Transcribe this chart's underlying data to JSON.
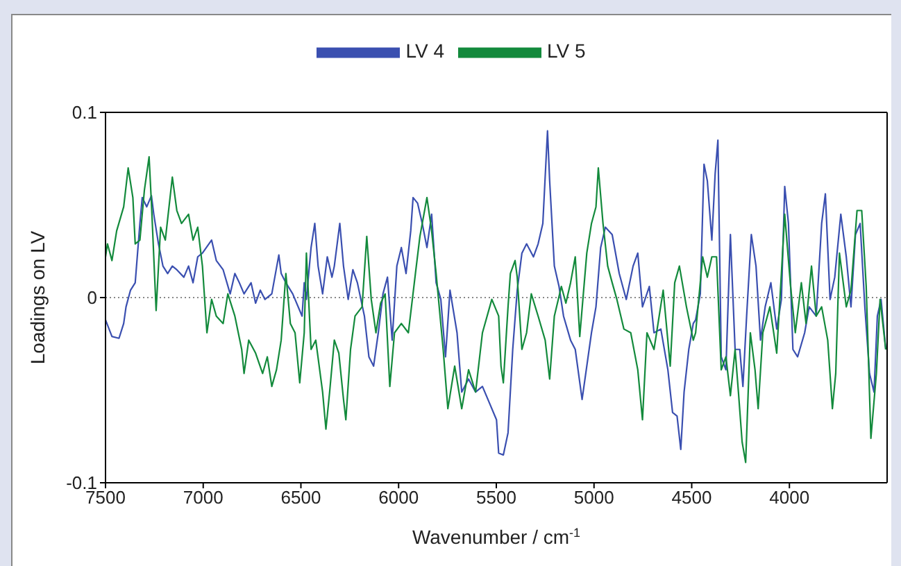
{
  "chart_data": {
    "type": "line",
    "xlabel": "Wavenumber / cm$^{-1}$",
    "ylabel": "Loadings on LV",
    "xlim": [
      7500,
      3500
    ],
    "xticks": [
      7500,
      7000,
      6500,
      6000,
      5500,
      5000,
      4500,
      4000
    ],
    "ylim": [
      -0.1,
      0.1
    ],
    "yticks": [
      -0.1,
      0,
      0.1
    ],
    "grid": false,
    "legend": "top",
    "marker": "none",
    "line_style": "solid",
    "ref_lines": [
      {
        "axis": "y",
        "value": 0,
        "color": "#888888",
        "line_style": "dotted"
      }
    ],
    "series": [
      {
        "name": "LV 4",
        "color": "#3a4fb0",
        "x": [
          7500,
          7467,
          7431,
          7407,
          7395,
          7372,
          7348,
          7324,
          7312,
          7289,
          7265,
          7253,
          7229,
          7206,
          7182,
          7158,
          7135,
          7099,
          7075,
          7052,
          7028,
          7004,
          6957,
          6933,
          6898,
          6862,
          6838,
          6815,
          6791,
          6755,
          6732,
          6708,
          6684,
          6649,
          6613,
          6601,
          6577,
          6542,
          6494,
          6483,
          6472,
          6448,
          6429,
          6412,
          6389,
          6365,
          6341,
          6329,
          6301,
          6282,
          6258,
          6234,
          6211,
          6175,
          6152,
          6128,
          6104,
          6080,
          6057,
          6033,
          6009,
          5986,
          5962,
          5938,
          5926,
          5903,
          5879,
          5855,
          5831,
          5808,
          5784,
          5760,
          5737,
          5701,
          5677,
          5642,
          5606,
          5571,
          5535,
          5499,
          5488,
          5464,
          5440,
          5416,
          5393,
          5369,
          5345,
          5310,
          5286,
          5262,
          5238,
          5227,
          5203,
          5179,
          5156,
          5120,
          5096,
          5061,
          5037,
          5013,
          4990,
          4966,
          4942,
          4907,
          4871,
          4835,
          4800,
          4776,
          4752,
          4717,
          4693,
          4658,
          4622,
          4598,
          4575,
          4556,
          4539,
          4515,
          4492,
          4480,
          4456,
          4437,
          4420,
          4397,
          4380,
          4366,
          4349,
          4325,
          4302,
          4278,
          4254,
          4238,
          4219,
          4195,
          4171,
          4148,
          4124,
          4095,
          4065,
          4041,
          4024,
          4005,
          3982,
          3958,
          3922,
          3899,
          3863,
          3835,
          3816,
          3792,
          3768,
          3737,
          3709,
          3685,
          3662,
          3638,
          3614,
          3590,
          3567,
          3550,
          3531,
          3507
        ],
        "values": [
          -0.012,
          -0.021,
          -0.022,
          -0.014,
          -0.005,
          0.004,
          0.008,
          0.04,
          0.054,
          0.049,
          0.055,
          0.045,
          0.029,
          0.017,
          0.013,
          0.017,
          0.015,
          0.011,
          0.017,
          0.008,
          0.022,
          0.024,
          0.031,
          0.02,
          0.015,
          0.002,
          0.013,
          0.008,
          0.002,
          0.008,
          -0.003,
          0.004,
          -0.001,
          0.002,
          0.023,
          0.013,
          0.008,
          0.002,
          -0.01,
          0.008,
          -0.001,
          0.027,
          0.04,
          0.017,
          0.002,
          0.022,
          0.011,
          0.017,
          0.04,
          0.017,
          -0.001,
          0.015,
          0.008,
          -0.01,
          -0.032,
          -0.037,
          -0.019,
          0.002,
          0.011,
          -0.023,
          0.017,
          0.027,
          0.013,
          0.036,
          0.054,
          0.051,
          0.04,
          0.027,
          0.045,
          0.008,
          -0.001,
          -0.032,
          0.004,
          -0.019,
          -0.051,
          -0.044,
          -0.051,
          -0.048,
          -0.057,
          -0.066,
          -0.084,
          -0.085,
          -0.073,
          -0.028,
          0.004,
          0.024,
          0.029,
          0.022,
          0.029,
          0.04,
          0.09,
          0.063,
          0.017,
          0.006,
          -0.01,
          -0.023,
          -0.028,
          -0.055,
          -0.037,
          -0.019,
          -0.005,
          0.027,
          0.038,
          0.034,
          0.013,
          -0.001,
          0.017,
          0.024,
          -0.005,
          0.006,
          -0.019,
          -0.017,
          -0.039,
          -0.062,
          -0.064,
          -0.082,
          -0.051,
          -0.028,
          -0.014,
          -0.012,
          0.002,
          0.072,
          0.063,
          0.031,
          0.067,
          0.085,
          -0.032,
          -0.039,
          0.034,
          -0.028,
          -0.028,
          -0.048,
          -0.01,
          0.034,
          0.017,
          -0.023,
          -0.005,
          0.008,
          -0.017,
          -0.001,
          0.06,
          0.04,
          -0.028,
          -0.032,
          -0.019,
          -0.005,
          -0.01,
          0.04,
          0.056,
          -0.001,
          0.011,
          0.045,
          0.022,
          -0.005,
          0.034,
          0.04,
          -0.005,
          -0.041,
          -0.051,
          -0.01,
          -0.001,
          -0.028
        ]
      },
      {
        "name": "LV 5",
        "color": "#138a3c",
        "x": [
          7500,
          7490,
          7467,
          7443,
          7407,
          7384,
          7360,
          7348,
          7324,
          7301,
          7277,
          7265,
          7241,
          7218,
          7194,
          7158,
          7135,
          7111,
          7075,
          7052,
          7028,
          7004,
          6981,
          6957,
          6933,
          6898,
          6874,
          6838,
          6803,
          6791,
          6767,
          6732,
          6696,
          6672,
          6649,
          6625,
          6601,
          6577,
          6554,
          6530,
          6506,
          6483,
          6472,
          6448,
          6424,
          6389,
          6372,
          6353,
          6329,
          6306,
          6282,
          6270,
          6246,
          6223,
          6187,
          6163,
          6140,
          6116,
          6092,
          6069,
          6045,
          6021,
          5986,
          5950,
          5914,
          5891,
          5855,
          5831,
          5808,
          5772,
          5748,
          5713,
          5677,
          5642,
          5606,
          5571,
          5523,
          5488,
          5476,
          5464,
          5440,
          5428,
          5404,
          5393,
          5369,
          5345,
          5321,
          5286,
          5250,
          5227,
          5203,
          5167,
          5144,
          5120,
          5096,
          5073,
          5037,
          5013,
          4990,
          4978,
          4954,
          4930,
          4907,
          4883,
          4847,
          4812,
          4776,
          4752,
          4729,
          4693,
          4646,
          4610,
          4587,
          4563,
          4527,
          4492,
          4480,
          4444,
          4420,
          4397,
          4373,
          4349,
          4325,
          4302,
          4278,
          4261,
          4242,
          4224,
          4200,
          4176,
          4160,
          4136,
          4100,
          4065,
          4041,
          4024,
          3994,
          3970,
          3939,
          3915,
          3887,
          3863,
          3835,
          3804,
          3780,
          3763,
          3744,
          3709,
          3685,
          3654,
          3630,
          3607,
          3583,
          3555,
          3536,
          3507
        ],
        "values": [
          0.022,
          0.029,
          0.02,
          0.036,
          0.049,
          0.07,
          0.054,
          0.029,
          0.031,
          0.058,
          0.076,
          0.051,
          -0.007,
          0.038,
          0.031,
          0.065,
          0.047,
          0.04,
          0.045,
          0.031,
          0.038,
          0.017,
          -0.019,
          -0.001,
          -0.01,
          -0.014,
          0.002,
          -0.01,
          -0.028,
          -0.041,
          -0.023,
          -0.03,
          -0.041,
          -0.032,
          -0.048,
          -0.039,
          -0.023,
          0.013,
          -0.014,
          -0.019,
          -0.046,
          -0.019,
          0.024,
          -0.028,
          -0.023,
          -0.051,
          -0.071,
          -0.051,
          -0.023,
          -0.03,
          -0.055,
          -0.066,
          -0.028,
          -0.01,
          -0.005,
          0.033,
          -0.001,
          -0.019,
          -0.003,
          0.002,
          -0.048,
          -0.019,
          -0.014,
          -0.019,
          0.013,
          0.033,
          0.054,
          0.036,
          0.013,
          -0.028,
          -0.06,
          -0.037,
          -0.06,
          -0.039,
          -0.051,
          -0.019,
          -0.001,
          -0.01,
          -0.037,
          -0.046,
          -0.005,
          0.013,
          0.02,
          0.011,
          -0.028,
          -0.019,
          0.002,
          -0.01,
          -0.023,
          -0.044,
          -0.01,
          0.006,
          -0.003,
          0.008,
          0.022,
          -0.021,
          0.024,
          0.04,
          0.049,
          0.07,
          0.04,
          0.017,
          0.008,
          -0.001,
          -0.017,
          -0.019,
          -0.039,
          -0.066,
          -0.019,
          -0.028,
          0.004,
          -0.037,
          0.008,
          0.017,
          -0.005,
          -0.023,
          -0.019,
          0.022,
          0.011,
          0.022,
          0.022,
          -0.039,
          -0.032,
          -0.053,
          -0.028,
          -0.051,
          -0.078,
          -0.089,
          -0.019,
          -0.039,
          -0.06,
          -0.019,
          -0.005,
          -0.03,
          0.013,
          0.045,
          0.006,
          -0.019,
          0.008,
          -0.014,
          0.017,
          -0.01,
          -0.005,
          -0.023,
          -0.06,
          -0.041,
          0.024,
          -0.005,
          0.004,
          0.047,
          0.047,
          0.006,
          -0.076,
          -0.041,
          -0.001,
          -0.028
        ]
      }
    ]
  }
}
